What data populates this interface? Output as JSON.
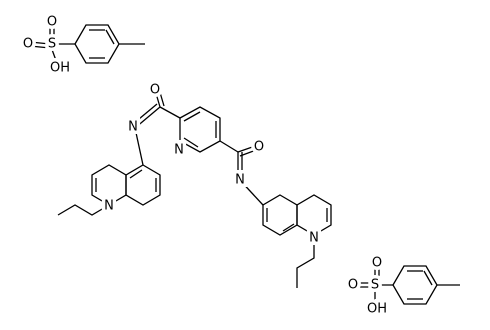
{
  "tosylate_top": {
    "atoms": [
      "O",
      "S",
      "O",
      "OH"
    ]
  },
  "cation": {
    "atoms": [
      "O",
      "N",
      "N",
      "O",
      "N",
      "N",
      "N"
    ]
  },
  "tosylate_bottom": {
    "atoms": [
      "O",
      "S",
      "O",
      "OH"
    ]
  }
}
